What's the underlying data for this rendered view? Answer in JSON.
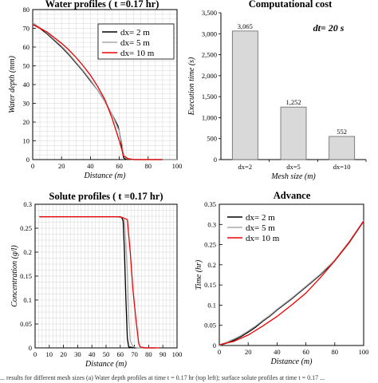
{
  "caption": "...  results for different mesh sizes (a) Water depth profiles at time t = 0.17 hr (top left); surface solute profiles at time t = 0.17 ...",
  "chart_data": [
    {
      "id": "water",
      "type": "line",
      "title": "Water profiles ( t =0.17 hr)",
      "xlabel": "Distance (m)",
      "ylabel": "Water depth (mm)",
      "xlim": [
        0,
        100
      ],
      "ylim": [
        0,
        80
      ],
      "xticks": [
        "0",
        "20",
        "40",
        "60",
        "80",
        "100"
      ],
      "yticks": [
        "0",
        "10",
        "20",
        "30",
        "40",
        "50",
        "60",
        "70",
        "80"
      ],
      "grid": true,
      "legend": "top-right",
      "series": [
        {
          "name": "dx= 2 m",
          "color": "#000000",
          "points": [
            [
              0,
              73
            ],
            [
              5,
              70
            ],
            [
              10,
              67
            ],
            [
              15,
              63.5
            ],
            [
              20,
              60
            ],
            [
              25,
              56
            ],
            [
              30,
              51.5
            ],
            [
              35,
              47
            ],
            [
              40,
              42
            ],
            [
              45,
              37
            ],
            [
              50,
              31
            ],
            [
              55,
              24
            ],
            [
              59,
              18
            ],
            [
              60,
              15
            ],
            [
              61,
              11
            ],
            [
              62,
              5
            ],
            [
              63,
              1
            ],
            [
              64,
              0.3
            ],
            [
              70,
              0
            ],
            [
              80,
              0
            ],
            [
              100,
              0
            ]
          ]
        },
        {
          "name": "dx= 5 m",
          "color": "#aaaaaa",
          "points": [
            [
              0,
              73
            ],
            [
              5,
              70.5
            ],
            [
              10,
              67.5
            ],
            [
              15,
              64
            ],
            [
              20,
              60.5
            ],
            [
              25,
              56.5
            ],
            [
              30,
              52
            ],
            [
              35,
              47.5
            ],
            [
              40,
              42.5
            ],
            [
              45,
              37
            ],
            [
              50,
              31
            ],
            [
              55,
              24
            ],
            [
              60,
              15
            ],
            [
              62,
              8
            ],
            [
              63,
              2
            ],
            [
              65,
              0.5
            ],
            [
              70,
              0
            ],
            [
              80,
              0
            ],
            [
              100,
              0
            ]
          ]
        },
        {
          "name": "dx= 10 m",
          "color": "#ee0000",
          "points": [
            [
              0,
              72
            ],
            [
              5,
              70
            ],
            [
              10,
              68
            ],
            [
              15,
              65
            ],
            [
              20,
              62
            ],
            [
              25,
              58.5
            ],
            [
              30,
              54.5
            ],
            [
              35,
              50
            ],
            [
              40,
              45
            ],
            [
              45,
              39
            ],
            [
              50,
              32
            ],
            [
              55,
              22
            ],
            [
              60,
              10
            ],
            [
              63,
              2
            ],
            [
              66,
              0.5
            ],
            [
              70,
              0
            ],
            [
              80,
              0
            ],
            [
              90,
              0
            ]
          ]
        }
      ]
    },
    {
      "id": "cost",
      "type": "bar",
      "title": "Computational cost",
      "annotation": "dt= 20 s",
      "xlabel": "Mesh size (m)",
      "ylabel": "Execution time (s)",
      "ylim": [
        0,
        3500
      ],
      "yticks": [
        "0",
        "500",
        "1,000",
        "1,500",
        "2,000",
        "2,500",
        "3,000",
        "3,500"
      ],
      "categories": [
        "dx=2",
        "dx=5",
        "dx=10"
      ],
      "values": [
        3065,
        1252,
        552
      ],
      "value_labels": [
        "3,065",
        "1,252",
        "552"
      ],
      "bar_color": "#d9d9d9"
    },
    {
      "id": "solute",
      "type": "line",
      "title": "Solute profiles ( t =0.17 hr)",
      "xlabel": "Distance (m)",
      "ylabel": "Concentration (g/l)",
      "xlim": [
        0,
        100
      ],
      "ylim": [
        0,
        0.3
      ],
      "xticks": [
        "0",
        "10",
        "20",
        "30",
        "40",
        "50",
        "60",
        "70",
        "80",
        "90",
        "100"
      ],
      "yticks": [
        "0",
        "0.05",
        "0.1",
        "0.15",
        "0.2",
        "0.25",
        "0.3"
      ],
      "grid": true,
      "legend": "none",
      "series": [
        {
          "name": "dx= 2 m",
          "color": "#000000",
          "points": [
            [
              3,
              0.274
            ],
            [
              58,
              0.274
            ],
            [
              61,
              0.272
            ],
            [
              62,
              0.265
            ],
            [
              63,
              0.2
            ],
            [
              64,
              0.1
            ],
            [
              65,
              0.02
            ],
            [
              66,
              0.002
            ],
            [
              70,
              0
            ],
            [
              85,
              0
            ]
          ]
        },
        {
          "name": "dx= 5 m",
          "color": "#aaaaaa",
          "points": [
            [
              3,
              0.274
            ],
            [
              58,
              0.274
            ],
            [
              62,
              0.272
            ],
            [
              63,
              0.265
            ],
            [
              65,
              0.16
            ],
            [
              66,
              0.06
            ],
            [
              67,
              0.015
            ],
            [
              69,
              0.003
            ],
            [
              72,
              0
            ],
            [
              85,
              0
            ]
          ]
        },
        {
          "name": "dx= 10 m",
          "color": "#ee0000",
          "points": [
            [
              3,
              0.274
            ],
            [
              60,
              0.274
            ],
            [
              65,
              0.268
            ],
            [
              67,
              0.2
            ],
            [
              69,
              0.12
            ],
            [
              71,
              0.06
            ],
            [
              73,
              0.01
            ],
            [
              74,
              0.002
            ],
            [
              78,
              0
            ],
            [
              87,
              0
            ]
          ]
        }
      ]
    },
    {
      "id": "advance",
      "type": "line",
      "title": "Advance",
      "xlabel": "Distance (m)",
      "ylabel": "Time (hr)",
      "xlim": [
        0,
        100
      ],
      "ylim": [
        0,
        0.35
      ],
      "xticks": [
        "0",
        "20",
        "40",
        "60",
        "80",
        "100"
      ],
      "yticks": [
        "0",
        "0.05",
        "0.1",
        "0.15",
        "0.2",
        "0.25",
        "0.3",
        "0.35"
      ],
      "grid": false,
      "legend": "top-left",
      "series": [
        {
          "name": "dx= 2 m",
          "color": "#000000",
          "points": [
            [
              0,
              0
            ],
            [
              5,
              0.006
            ],
            [
              10,
              0.013
            ],
            [
              15,
              0.022
            ],
            [
              20,
              0.033
            ],
            [
              25,
              0.045
            ],
            [
              30,
              0.06
            ],
            [
              35,
              0.073
            ],
            [
              40,
              0.088
            ],
            [
              50,
              0.115
            ],
            [
              60,
              0.145
            ],
            [
              70,
              0.175
            ],
            [
              80,
              0.21
            ],
            [
              90,
              0.255
            ],
            [
              100,
              0.308
            ]
          ]
        },
        {
          "name": "dx= 5 m",
          "color": "#aaaaaa",
          "points": [
            [
              0,
              0
            ],
            [
              5,
              0.008
            ],
            [
              10,
              0.016
            ],
            [
              15,
              0.025
            ],
            [
              20,
              0.036
            ],
            [
              25,
              0.048
            ],
            [
              30,
              0.062
            ],
            [
              35,
              0.075
            ],
            [
              40,
              0.09
            ],
            [
              50,
              0.117
            ],
            [
              60,
              0.147
            ],
            [
              70,
              0.177
            ],
            [
              80,
              0.212
            ],
            [
              90,
              0.257
            ],
            [
              100,
              0.31
            ]
          ]
        },
        {
          "name": "dx= 10 m",
          "color": "#ee0000",
          "points": [
            [
              0,
              0.002
            ],
            [
              10,
              0.01
            ],
            [
              20,
              0.026
            ],
            [
              30,
              0.048
            ],
            [
              40,
              0.072
            ],
            [
              50,
              0.1
            ],
            [
              60,
              0.13
            ],
            [
              70,
              0.168
            ],
            [
              80,
              0.21
            ],
            [
              90,
              0.256
            ],
            [
              100,
              0.308
            ]
          ]
        }
      ]
    }
  ]
}
